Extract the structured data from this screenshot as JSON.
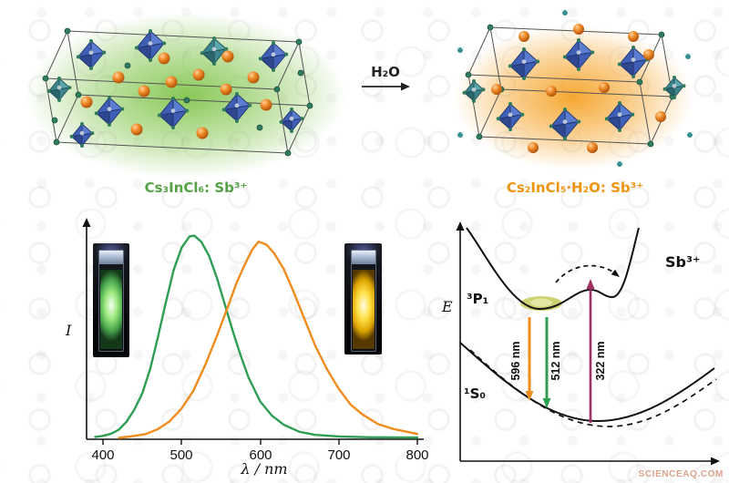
{
  "figure": {
    "panel_top": {
      "left_label": "Cs₃InCl₆: Sb³⁺",
      "right_label": "Cs₂InCl₅·H₂O: Sb³⁺",
      "reaction_label": "H₂O",
      "left_label_color": "#56a246",
      "right_label_color": "#ed9513",
      "left_glow_color": "#7cc244",
      "right_glow_color": "#f59e1c"
    },
    "watermark": "SCIENCEAQ.COM"
  },
  "chart_data": [
    {
      "type": "line",
      "xlabel": "λ / nm",
      "ylabel": "I",
      "xlim": [
        378,
        805
      ],
      "ylim": [
        0,
        1.05
      ],
      "grid": false,
      "legend": "none",
      "xticks": [
        "400",
        "500",
        "600",
        "700",
        "800"
      ],
      "series": [
        {
          "name": "Cs₃InCl₆: Sb³⁺ green emission",
          "color": "#2f9e55",
          "peak_nm": 512,
          "scale": 1.0,
          "x": [
            390,
            400,
            410,
            420,
            430,
            440,
            450,
            460,
            470,
            480,
            490,
            500,
            510,
            516,
            525,
            535,
            545,
            555,
            565,
            575,
            585,
            600,
            615,
            630,
            650,
            670,
            700,
            740,
            800
          ],
          "y": [
            0.005,
            0.01,
            0.02,
            0.04,
            0.08,
            0.14,
            0.22,
            0.34,
            0.5,
            0.67,
            0.83,
            0.94,
            0.995,
            1.0,
            0.97,
            0.9,
            0.79,
            0.66,
            0.53,
            0.41,
            0.3,
            0.18,
            0.11,
            0.065,
            0.03,
            0.015,
            0.007,
            0.003,
            0.002
          ]
        },
        {
          "name": "Cs₂InCl₅·H₂O: Sb³⁺ orange emission",
          "color": "#f08c1e",
          "peak_nm": 596,
          "scale": 0.97,
          "x": [
            420,
            440,
            455,
            470,
            485,
            500,
            515,
            530,
            545,
            560,
            570,
            580,
            590,
            598,
            608,
            618,
            630,
            642,
            655,
            670,
            685,
            700,
            715,
            730,
            750,
            770,
            800
          ],
          "y": [
            0.0,
            0.01,
            0.02,
            0.045,
            0.085,
            0.15,
            0.24,
            0.37,
            0.52,
            0.68,
            0.79,
            0.88,
            0.96,
            1.0,
            0.985,
            0.94,
            0.86,
            0.75,
            0.62,
            0.47,
            0.35,
            0.25,
            0.17,
            0.12,
            0.07,
            0.045,
            0.02
          ]
        }
      ]
    },
    {
      "type": "diagram",
      "ylabel": "E",
      "ion_label": "Sb³⁺",
      "excited_state": "³P₁",
      "ground_state": "¹S₀",
      "transitions": [
        {
          "label": "596 nm",
          "direction": "down",
          "color": "#f08c1e"
        },
        {
          "label": "512 nm",
          "direction": "down",
          "color": "#2f9e55"
        },
        {
          "label": "322 nm",
          "direction": "up",
          "color": "#a03063"
        }
      ]
    }
  ]
}
